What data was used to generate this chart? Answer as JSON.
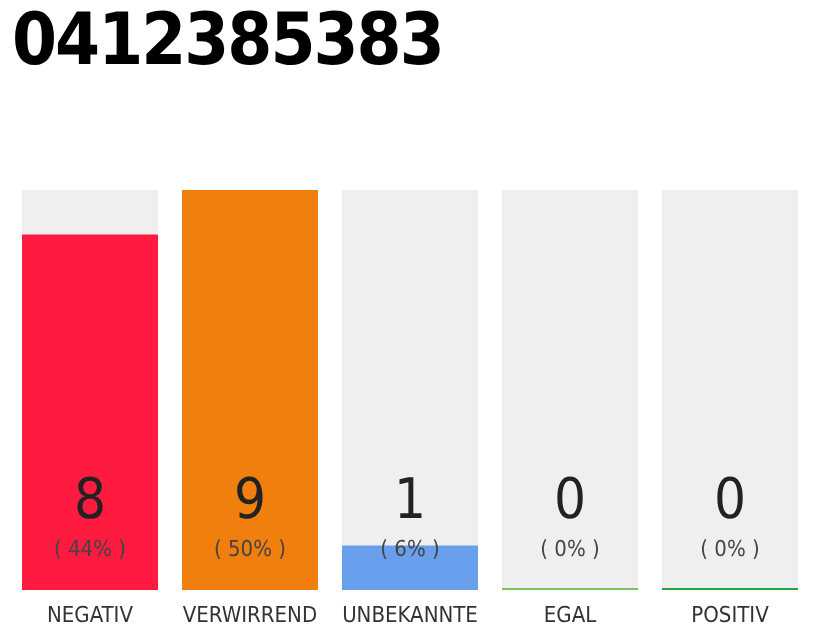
{
  "chart_data": {
    "type": "bar",
    "title": "0412385383",
    "categories": [
      "NEGATIV",
      "VERWIRREND",
      "UNBEKANNTE",
      "EGAL",
      "POSITIV"
    ],
    "values": [
      8,
      9,
      1,
      0,
      0
    ],
    "colors": [
      "#ff1a40",
      "#f07f0e",
      "#68a0ee",
      "#7cc35c",
      "#21a845"
    ],
    "data_labels": true,
    "annotations": [
      "( 44% )",
      "( 50% )",
      "( 6% )",
      "( 0% )",
      "( 0% )"
    ],
    "grid": false,
    "legend": false
  }
}
